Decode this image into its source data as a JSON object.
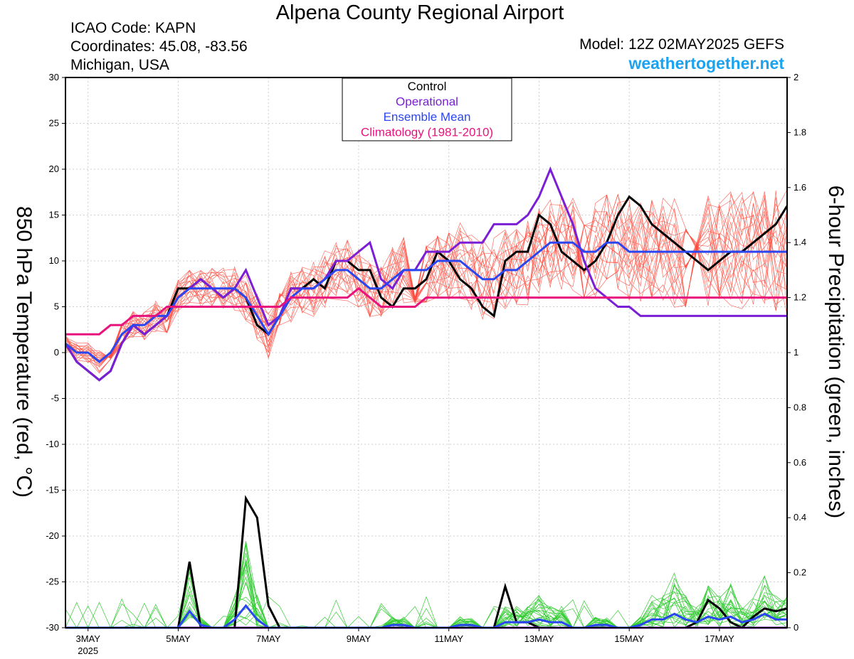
{
  "header": {
    "title": "Alpena County Regional Airport",
    "icao": "ICAO Code: KAPN",
    "coords": "Coordinates: 45.08, -83.56",
    "location": "Michigan, USA",
    "model": "Model: 12Z 02MAY2025 GEFS",
    "site": "weathertogether.net"
  },
  "colors": {
    "control": "#000000",
    "operational": "#7a1fd6",
    "ensemble_mean": "#2a46f0",
    "climatology": "#e8137d",
    "members_temp": "#ff4a3c",
    "members_precip": "#33cc33",
    "site": "#1aa3f0"
  },
  "chart_data": {
    "type": "line",
    "title": "Alpena County Regional Airport",
    "ylabel": "850 hPa Temperature (red, °C)",
    "y2label": "6-hour Precipitation (green, inches)",
    "ylim": [
      -30,
      30
    ],
    "y2lim": [
      0,
      2
    ],
    "yticks": [
      "30",
      "25",
      "20",
      "15",
      "10",
      "5",
      "0",
      "-5",
      "-10",
      "-15",
      "-20",
      "-25",
      "-30"
    ],
    "y2ticks": [
      "2",
      "1.8",
      "1.6",
      "1.4",
      "1.2",
      "1",
      "0.8",
      "0.6",
      "0.4",
      "0.2",
      "0"
    ],
    "xlim": [
      0,
      16
    ],
    "x_unit": "days after 2025-05-02 12Z",
    "xticks": [
      {
        "day": 0.5,
        "label": "3MAY",
        "sub": "2025"
      },
      {
        "day": 2.5,
        "label": "5MAY"
      },
      {
        "day": 4.5,
        "label": "7MAY"
      },
      {
        "day": 6.5,
        "label": "9MAY"
      },
      {
        "day": 8.5,
        "label": "11MAY"
      },
      {
        "day": 10.5,
        "label": "13MAY"
      },
      {
        "day": 12.5,
        "label": "15MAY"
      },
      {
        "day": 14.5,
        "label": "17MAY"
      }
    ],
    "legend": {
      "placement": "top-center",
      "entries": [
        "Control",
        "Operational",
        "Ensemble Mean",
        "Climatology (1981-2010)"
      ]
    },
    "x_days": [
      0,
      0.25,
      0.5,
      0.75,
      1,
      1.25,
      1.5,
      1.75,
      2,
      2.25,
      2.5,
      2.75,
      3,
      3.25,
      3.5,
      3.75,
      4,
      4.25,
      4.5,
      4.75,
      5,
      5.25,
      5.5,
      5.75,
      6,
      6.25,
      6.5,
      6.75,
      7,
      7.25,
      7.5,
      7.75,
      8,
      8.25,
      8.5,
      8.75,
      9,
      9.25,
      9.5,
      9.75,
      10,
      10.25,
      10.5,
      10.75,
      11,
      11.25,
      11.5,
      11.75,
      12,
      12.25,
      12.5,
      12.75,
      13,
      13.25,
      13.5,
      13.75,
      14,
      14.25,
      14.5,
      14.75,
      15,
      15.25,
      15.5,
      15.75,
      16
    ],
    "temperature_series": [
      {
        "name": "Control",
        "values": [
          1,
          -1,
          -2,
          -3,
          -2,
          1,
          3,
          2,
          3,
          4,
          7,
          7,
          8,
          7,
          6,
          7,
          6,
          3,
          2,
          4,
          7,
          7,
          8,
          7,
          10,
          10,
          9,
          9,
          6,
          5,
          7,
          7,
          8,
          11,
          10,
          8,
          7,
          5,
          4,
          10,
          11,
          11,
          15,
          14,
          11,
          10,
          9,
          10,
          12,
          15,
          17,
          16,
          14,
          13,
          12,
          11,
          10,
          9,
          10,
          11,
          11,
          12,
          13,
          14,
          16
        ]
      },
      {
        "name": "Operational",
        "values": [
          1,
          -1,
          -2,
          -3,
          -2,
          1,
          3,
          2,
          3,
          4,
          6,
          7,
          8,
          7,
          6,
          7,
          9,
          6,
          3,
          4,
          7,
          7,
          7,
          8,
          10,
          10,
          11,
          12,
          8,
          7,
          9,
          9,
          11,
          11,
          11,
          12,
          12,
          12,
          14,
          14,
          14,
          15,
          17,
          20,
          17,
          14,
          10,
          7,
          6,
          5,
          5,
          4,
          4,
          4,
          4,
          4,
          4,
          4,
          4,
          4,
          4,
          4,
          4,
          4,
          4
        ]
      },
      {
        "name": "Ensemble Mean",
        "values": [
          1,
          0,
          0,
          -1,
          0,
          2,
          3,
          3,
          4,
          4,
          6,
          7,
          7,
          7,
          7,
          7,
          6,
          4,
          2,
          4,
          6,
          7,
          7,
          8,
          9,
          9,
          8,
          7,
          7,
          8,
          9,
          9,
          9,
          10,
          10,
          10,
          9,
          8,
          8,
          9,
          9,
          10,
          11,
          12,
          12,
          12,
          11,
          11,
          12,
          12,
          11,
          11,
          11,
          11,
          11,
          11,
          11,
          11,
          11,
          11,
          11,
          11,
          11,
          11,
          11
        ]
      },
      {
        "name": "Climatology (1981-2010)",
        "values": [
          2,
          2,
          2,
          2,
          3,
          3,
          4,
          4,
          4,
          5,
          5,
          5,
          5,
          5,
          5,
          5,
          5,
          5,
          5,
          5,
          6,
          6,
          6,
          6,
          6,
          6,
          7,
          6,
          5,
          5,
          5,
          5,
          6,
          6,
          6,
          6,
          6,
          6,
          6,
          6,
          6,
          6,
          6,
          6,
          6,
          6,
          6,
          6,
          6,
          6,
          6,
          6,
          6,
          6,
          6,
          6,
          6,
          6,
          6,
          6,
          6,
          6,
          6,
          6,
          6
        ]
      }
    ],
    "precipitation_series": [
      {
        "name": "Control",
        "values": [
          0,
          0,
          0,
          0,
          0,
          0,
          0,
          0,
          0,
          0,
          0,
          0.24,
          0,
          0,
          0,
          0,
          0.47,
          0.4,
          0.08,
          0,
          0,
          0,
          0,
          0,
          0,
          0,
          0,
          0,
          0,
          0,
          0,
          0,
          0,
          0,
          0,
          0,
          0,
          0,
          0,
          0.15,
          0.02,
          0.02,
          0,
          0,
          0,
          0,
          0,
          0,
          0,
          0,
          0,
          0,
          0,
          0,
          0,
          0,
          0.02,
          0.1,
          0.07,
          0.02,
          0,
          0.04,
          0.07,
          0.06,
          0.07
        ]
      },
      {
        "name": "Operational",
        "values": [
          0,
          0,
          0,
          0,
          0,
          0,
          0,
          0,
          0,
          0,
          0,
          0,
          0,
          0,
          0,
          0,
          0,
          0,
          0,
          0,
          0,
          0,
          0,
          0,
          0,
          0,
          0,
          0,
          0,
          0,
          0,
          0,
          0,
          0,
          0,
          0,
          0,
          0,
          0,
          0,
          0,
          0,
          0,
          0,
          0,
          0,
          0,
          0,
          0,
          0,
          0,
          0,
          0,
          0,
          0,
          0,
          0,
          0,
          0,
          0,
          0,
          0,
          0,
          0,
          0
        ]
      },
      {
        "name": "Ensemble Mean",
        "values": [
          0,
          0,
          0,
          0,
          0,
          0,
          0,
          0,
          0,
          0,
          0,
          0.06,
          0.01,
          0,
          0,
          0.03,
          0.08,
          0.03,
          0,
          0,
          0,
          0,
          0,
          0,
          0,
          0,
          0,
          0,
          0,
          0.01,
          0.01,
          0,
          0,
          0,
          0,
          0.01,
          0.01,
          0,
          0,
          0.02,
          0.02,
          0.02,
          0.03,
          0.02,
          0.02,
          0,
          0,
          0.01,
          0.01,
          0,
          0,
          0.01,
          0.03,
          0.03,
          0.05,
          0.03,
          0.02,
          0.04,
          0.03,
          0.04,
          0.02,
          0.03,
          0.05,
          0.03,
          0.03
        ]
      }
    ],
    "ensemble_member_count": 20
  }
}
